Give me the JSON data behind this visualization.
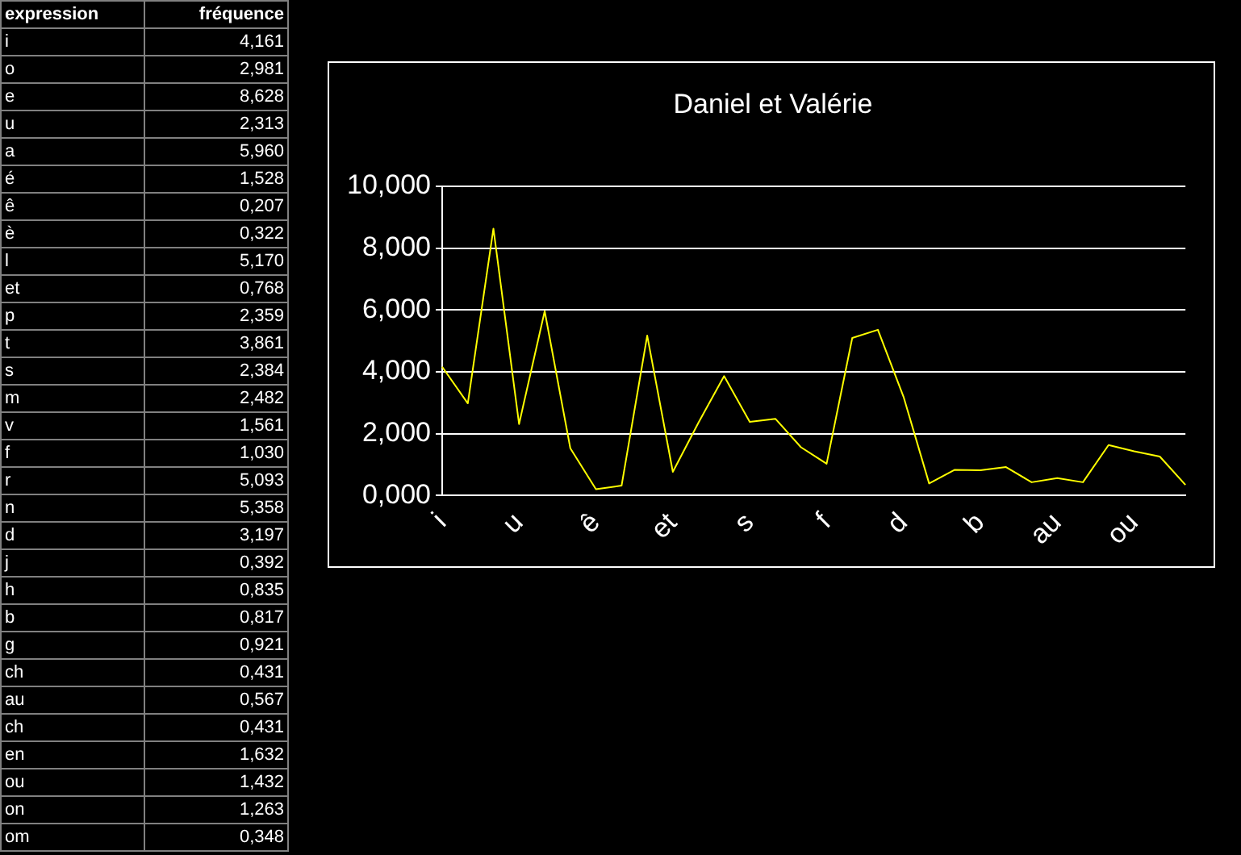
{
  "chart_data": [
    {
      "type": "other",
      "xlabel": "expression",
      "ylabel": "fréquence",
      "categories": [
        "i",
        "o",
        "e",
        "u",
        "a",
        "é",
        "ê",
        "è",
        "l",
        "et",
        "p",
        "t",
        "s",
        "m",
        "v",
        "f",
        "r",
        "n",
        "d",
        "j",
        "h",
        "b",
        "g",
        "ch",
        "au",
        "ch",
        "en",
        "ou",
        "on",
        "om"
      ],
      "value_labels": [
        "4,161",
        "2,981",
        "8,628",
        "2,313",
        "5,960",
        "1,528",
        "0,207",
        "0,322",
        "5,170",
        "0,768",
        "2,359",
        "3,861",
        "2,384",
        "2,482",
        "1,561",
        "1,030",
        "5,093",
        "5,358",
        "3,197",
        "0,392",
        "0,835",
        "0,817",
        "0,921",
        "0,431",
        "0,567",
        "0,431",
        "1,632",
        "1,432",
        "1,263",
        "0,348"
      ]
    },
    {
      "type": "line",
      "title": "Daniel et Valérie",
      "categories": [
        "i",
        null,
        null,
        "u",
        null,
        null,
        "ê",
        null,
        null,
        "et",
        null,
        null,
        "s",
        null,
        null,
        "f",
        null,
        null,
        "d",
        null,
        null,
        "b",
        null,
        null,
        "au",
        null,
        null,
        "ou",
        null,
        null
      ],
      "series": [
        {
          "color": "#ffff00",
          "values": [
            4.161,
            2.981,
            8.628,
            2.313,
            5.96,
            1.528,
            0.207,
            0.322,
            5.17,
            0.768,
            2.359,
            3.861,
            2.384,
            2.482,
            1.561,
            1.03,
            5.093,
            5.358,
            3.197,
            0.392,
            0.835,
            0.817,
            0.921,
            0.431,
            0.567,
            0.431,
            1.632,
            1.432,
            1.263,
            0.348
          ]
        }
      ],
      "ylim": [
        0,
        10
      ],
      "yticks": [
        {
          "value": 0,
          "label": "0,000"
        },
        {
          "value": 2,
          "label": "2,000"
        },
        {
          "value": 4,
          "label": "4,000"
        },
        {
          "value": 6,
          "label": "6,000"
        },
        {
          "value": 8,
          "label": "8,000"
        },
        {
          "value": 10,
          "label": "10,000"
        }
      ],
      "grid": "y",
      "legend": false,
      "marker": "none",
      "line_style": "solid"
    }
  ]
}
